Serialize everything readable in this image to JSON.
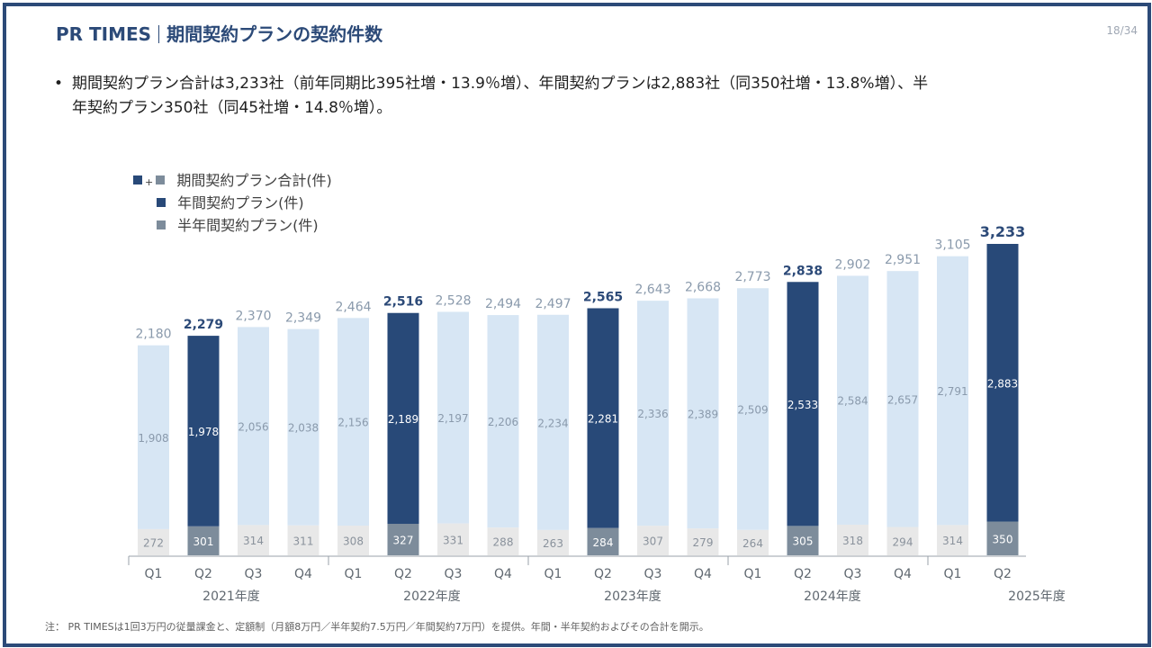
{
  "header": {
    "brand": "PR TIMES",
    "title": "期間契約プランの契約件数"
  },
  "page_number": "18/34",
  "bullet": {
    "line1": "期間契約プラン合計は3,233社（前年同期比395社増・13.9％増）、年間契約プランは2,883社（同350社増・13.8%増）、半",
    "line2": "年契約プラン350社（同45社増・14.8％増）。"
  },
  "footnote": "注： PR TIMESは1回3万円の従量課金と、定額制（月額8万円／半年契約7.5万円／年間契約7万円）を提供。年間・半年契約およびその合計を開示。",
  "colors": {
    "frame": "#2c4a78",
    "q2_annual": "#284978",
    "other_annual": "#d7e6f4",
    "q2_half": "#7d8c9b",
    "other_half": "#e8e8e8"
  },
  "chart_data": {
    "type": "bar",
    "stacked": true,
    "title": "",
    "legend": [
      "期間契約プラン合計(件)",
      "年間契約プラン(件)",
      "半年間契約プラン(件)"
    ],
    "quarters": [
      "Q1",
      "Q2",
      "Q3",
      "Q4",
      "Q1",
      "Q2",
      "Q3",
      "Q4",
      "Q1",
      "Q2",
      "Q3",
      "Q4",
      "Q1",
      "Q2",
      "Q3",
      "Q4",
      "Q1",
      "Q2"
    ],
    "years": [
      "2021年度",
      "2022年度",
      "2023年度",
      "2024年度",
      "2025年度"
    ],
    "series": [
      {
        "name": "年間契約プラン(件)",
        "values": [
          1908,
          1978,
          2056,
          2038,
          2156,
          2189,
          2197,
          2206,
          2234,
          2281,
          2336,
          2389,
          2509,
          2533,
          2584,
          2657,
          2791,
          2883
        ]
      },
      {
        "name": "半年間契約プラン(件)",
        "values": [
          272,
          301,
          314,
          311,
          308,
          327,
          331,
          288,
          263,
          284,
          307,
          279,
          264,
          305,
          318,
          294,
          314,
          350
        ]
      }
    ],
    "totals": [
      "2,180",
      "2,279",
      "2,370",
      "2,349",
      "2,464",
      "2,516",
      "2,528",
      "2,494",
      "2,497",
      "2,565",
      "2,643",
      "2,668",
      "2,773",
      "2,838",
      "2,902",
      "2,951",
      "3,105",
      "3,233"
    ],
    "annual_labels": [
      "1,908",
      "1,978",
      "2,056",
      "2,038",
      "2,156",
      "2,189",
      "2,197",
      "2,206",
      "2,234",
      "2,281",
      "2,336",
      "2,389",
      "2,509",
      "2,533",
      "2,584",
      "2,657",
      "2,791",
      "2,883"
    ],
    "half_labels": [
      "272",
      "301",
      "314",
      "311",
      "308",
      "327",
      "331",
      "288",
      "263",
      "284",
      "307",
      "279",
      "264",
      "305",
      "318",
      "294",
      "314",
      "350"
    ],
    "highlight_quarter": "Q2",
    "ylim": [
      0,
      3300
    ]
  }
}
